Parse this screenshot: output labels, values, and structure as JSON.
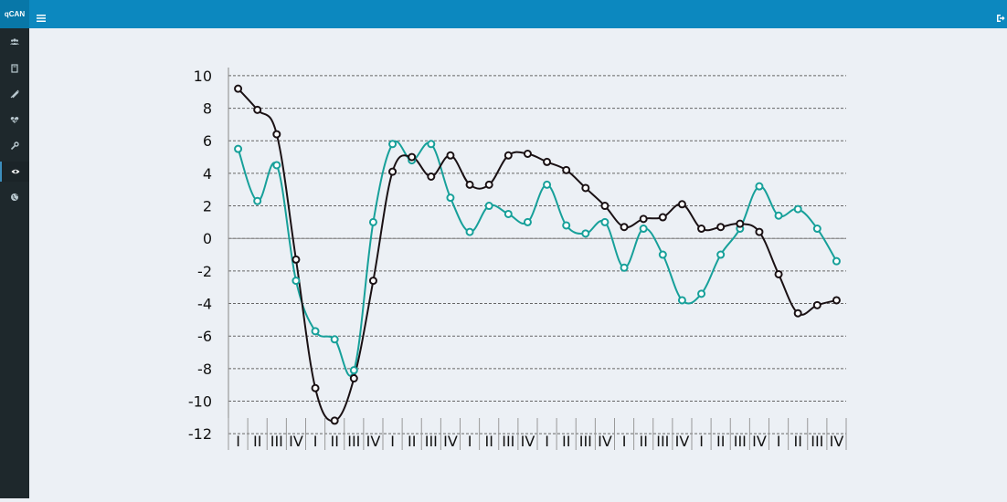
{
  "header": {
    "brand": "qCAN",
    "menu_icon": "hamburger-icon",
    "logout_icon": "sign-out-icon",
    "color": "#0c88bf"
  },
  "sidebar": {
    "items": [
      {
        "icon": "users-icon"
      },
      {
        "icon": "book-icon"
      },
      {
        "icon": "syringe-icon"
      },
      {
        "icon": "heartbeat-icon"
      },
      {
        "icon": "wrench-icon"
      },
      {
        "icon": "eye-icon",
        "active": true
      },
      {
        "icon": "globe-icon"
      }
    ]
  },
  "chart_data": {
    "type": "line",
    "title": "",
    "xlabel": "",
    "ylabel": "",
    "ylim": [
      -13,
      10.5
    ],
    "yticks": [
      10,
      8,
      6,
      4,
      2,
      0,
      -2,
      -4,
      -6,
      -8,
      -10,
      -12
    ],
    "grid": true,
    "categories": [
      "I",
      "II",
      "III",
      "IV",
      "I",
      "II",
      "III",
      "IV",
      "I",
      "II",
      "III",
      "IV",
      "I",
      "II",
      "III",
      "IV",
      "I",
      "II",
      "III",
      "IV",
      "I",
      "II",
      "III",
      "IV",
      "I",
      "II",
      "III",
      "IV",
      "I",
      "II",
      "III",
      "IV"
    ],
    "series": [
      {
        "color": "#1a1114",
        "values": [
          9.2,
          7.9,
          6.4,
          -1.3,
          -9.2,
          -11.2,
          -8.6,
          -2.6,
          4.1,
          5.0,
          3.8,
          5.1,
          3.3,
          3.3,
          5.1,
          5.2,
          4.7,
          4.2,
          3.1,
          2.0,
          0.7,
          1.2,
          1.3,
          2.1,
          0.6,
          0.7,
          0.9,
          0.4,
          -2.2,
          -4.6,
          -4.1,
          -3.8
        ]
      },
      {
        "color": "#17a09a",
        "values": [
          5.5,
          2.3,
          4.5,
          -2.6,
          -5.7,
          -6.2,
          -8.1,
          1.0,
          5.8,
          4.8,
          5.8,
          2.5,
          0.4,
          2.0,
          1.5,
          1.0,
          3.3,
          0.8,
          0.3,
          1.0,
          -1.8,
          0.6,
          -1.0,
          -3.8,
          -3.4,
          -1.0,
          0.6,
          3.2,
          1.4,
          1.8,
          0.6,
          -1.4
        ]
      }
    ]
  }
}
